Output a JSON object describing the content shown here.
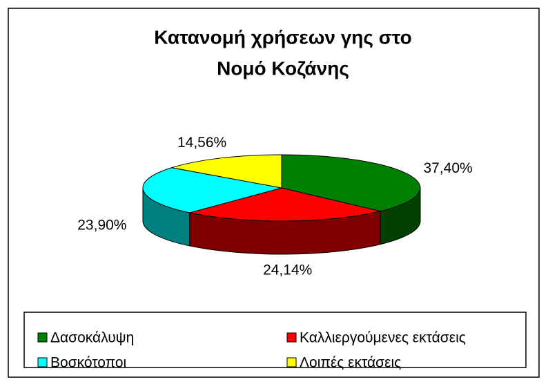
{
  "chart_data": {
    "type": "pie3d",
    "title": [
      "Κατανομή χρήσεων γης στο",
      "Νομό Κοζάνης"
    ],
    "categories": [
      "Δασοκάλυψη",
      "Καλλιεργούμενες εκτάσεις",
      "Βοσκότοποι",
      "Λοιπές εκτάσεις"
    ],
    "values": [
      37.4,
      24.14,
      23.9,
      14.56
    ],
    "value_labels": [
      "37,40%",
      "24,14%",
      "23,90%",
      "14,56%"
    ],
    "colors": [
      "#008000",
      "#ff0000",
      "#00ffff",
      "#ffff00"
    ],
    "side_colors": [
      "#004000",
      "#800000",
      "#008080",
      "#808000"
    ],
    "legend": "bottom"
  }
}
